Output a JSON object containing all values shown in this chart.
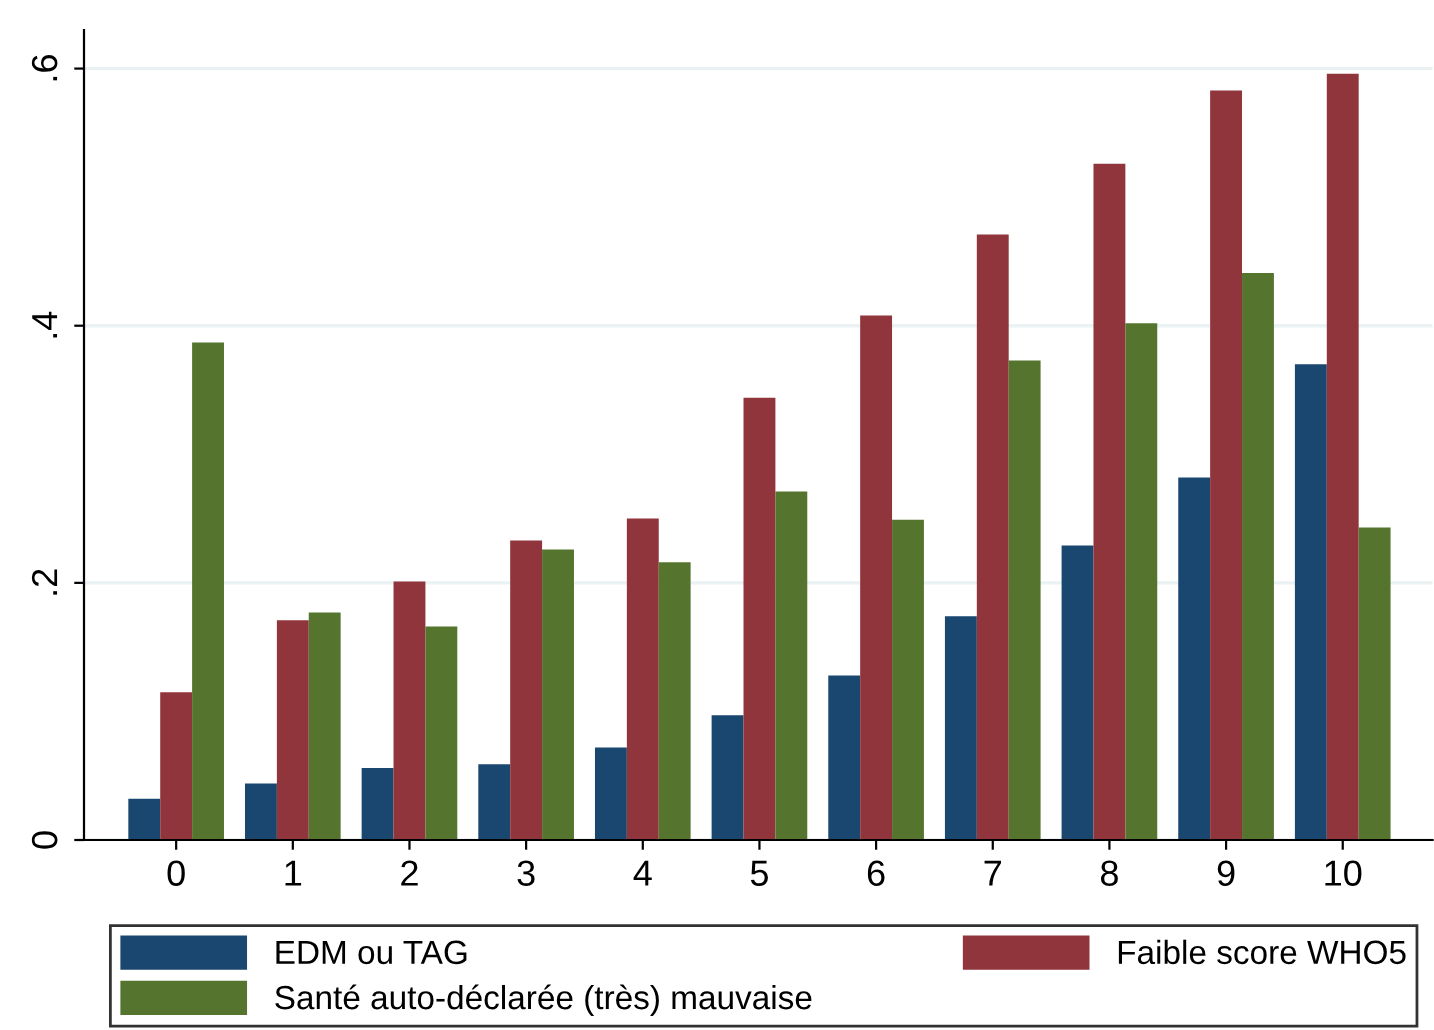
{
  "chart_data": {
    "type": "bar",
    "categories": [
      "0",
      "1",
      "2",
      "3",
      "4",
      "5",
      "6",
      "7",
      "8",
      "9",
      "10"
    ],
    "series": [
      {
        "name": "EDM ou TAG",
        "color": "#1a476f",
        "values": [
          0.032,
          0.044,
          0.056,
          0.059,
          0.072,
          0.097,
          0.128,
          0.174,
          0.229,
          0.282,
          0.37
        ]
      },
      {
        "name": "Faible score WHO5",
        "color": "#90353b",
        "values": [
          0.115,
          0.171,
          0.201,
          0.233,
          0.25,
          0.344,
          0.408,
          0.471,
          0.526,
          0.583,
          0.596
        ]
      },
      {
        "name": "Santé auto-déclarée (très) mauvaise",
        "color": "#55752f",
        "values": [
          0.387,
          0.177,
          0.166,
          0.226,
          0.216,
          0.271,
          0.249,
          0.373,
          0.402,
          0.441,
          0.243
        ]
      }
    ],
    "ylim": [
      0,
      0.63
    ],
    "yticks": [
      0,
      {
        "value": 0.2,
        "label": ".2"
      },
      {
        "value": 0.4,
        "label": ".4"
      },
      {
        "value": 0.6,
        "label": ".6"
      }
    ],
    "grid": "y",
    "legend": "bottom"
  }
}
